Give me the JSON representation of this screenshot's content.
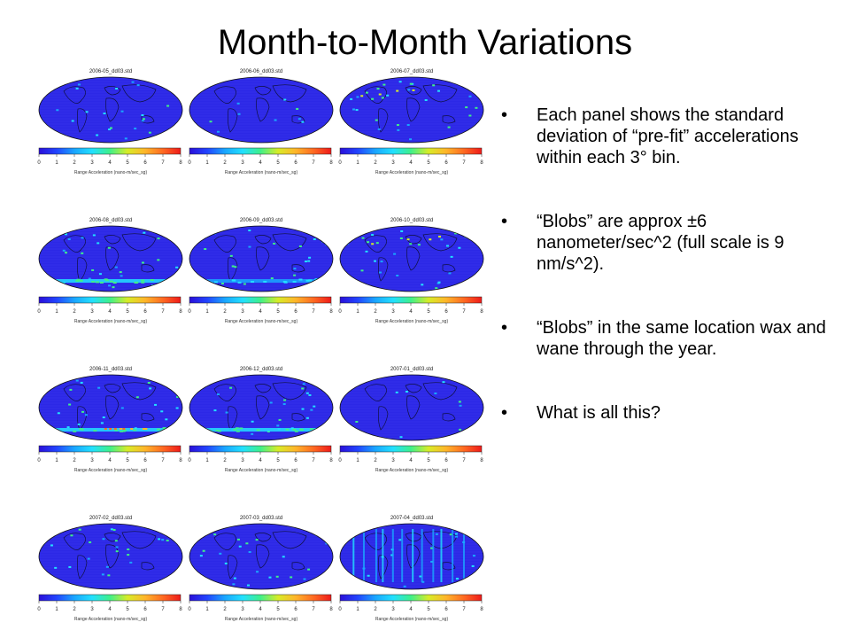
{
  "slide": {
    "title": "Month-to-Month Variations",
    "bullets": [
      "Each panel shows the standard deviation of “pre-fit” accelerations within each 3° bin.",
      "“Blobs” are approx ±6 nanometer/sec^2 (full scale is 9 nm/s^2).",
      "“Blobs” in the same location wax and wane through the year.",
      "What is all this?"
    ],
    "bullet_symbol": "•",
    "colorbar": {
      "ticks": [
        "0",
        "1",
        "2",
        "3",
        "4",
        "5",
        "6",
        "7",
        "8"
      ],
      "title": "Range Acceleration (nano-m/sec_sg)",
      "colors": [
        "#2a0fd8",
        "#2244ff",
        "#1aa6ff",
        "#22e0ff",
        "#3ef08a",
        "#d7ec28",
        "#ffb52a",
        "#ff6a22",
        "#ee1a1a"
      ]
    },
    "panels": [
      {
        "label": "2006-05_dd03.std",
        "blobs": "scattered"
      },
      {
        "label": "2006-06_dd03.std",
        "blobs": "quiet"
      },
      {
        "label": "2006-07_dd03.std",
        "blobs": "scattered-north"
      },
      {
        "label": "2006-08_dd03.std",
        "blobs": "southern-band"
      },
      {
        "label": "2006-09_dd03.std",
        "blobs": "faint-band"
      },
      {
        "label": "2006-10_dd03.std",
        "blobs": "scattered-north"
      },
      {
        "label": "2006-11_dd03.std",
        "blobs": "strong-southern-band"
      },
      {
        "label": "2006-12_dd03.std",
        "blobs": "southern-band"
      },
      {
        "label": "2007-01_dd03.std",
        "blobs": "quiet"
      },
      {
        "label": "2007-02_dd03.std",
        "blobs": "scattered"
      },
      {
        "label": "2007-03_dd03.std",
        "blobs": "scattered"
      },
      {
        "label": "2007-04_dd03.std",
        "blobs": "vertical-streaks"
      }
    ]
  }
}
